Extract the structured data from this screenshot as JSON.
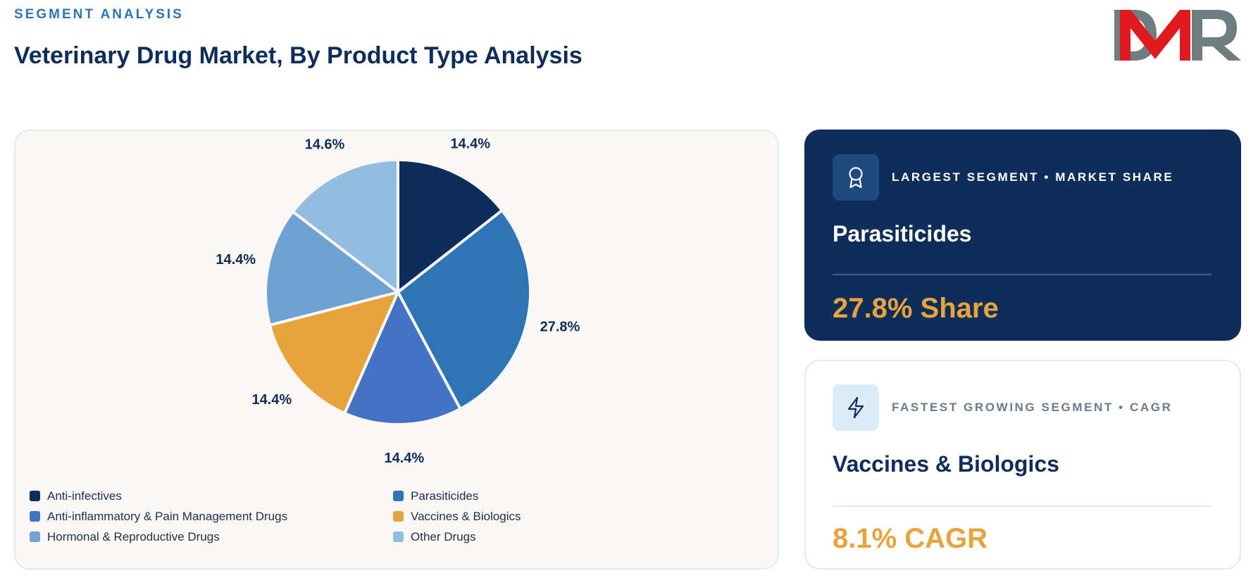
{
  "header": {
    "eyebrow": "SEGMENT ANALYSIS",
    "title": "Veterinary Drug Market, By Product Type Analysis"
  },
  "logo": {
    "text": "DMR",
    "colors": {
      "d": "#6e7d7d",
      "m": "#e0191f",
      "r": "#6e7d7d"
    }
  },
  "chart_data": {
    "type": "pie",
    "categories": [
      "Anti-infectives",
      "Parasiticides",
      "Anti-inflammatory & Pain Management Drugs",
      "Vaccines & Biologics",
      "Hormonal & Reproductive Drugs",
      "Other Drugs"
    ],
    "values": [
      14.4,
      27.8,
      14.4,
      14.4,
      14.4,
      14.6
    ],
    "labels": [
      "14.4%",
      "27.8%",
      "14.4%",
      "14.4%",
      "14.4%",
      "14.6%"
    ],
    "colors": [
      "#0e2d5a",
      "#2e75b6",
      "#4472c4",
      "#e8a43c",
      "#70a1d4",
      "#90bde0"
    ],
    "legend_position": "bottom"
  },
  "cards": {
    "largest": {
      "icon": "award-icon",
      "eyebrow": "LARGEST SEGMENT • MARKET SHARE",
      "segment": "Parasiticides",
      "value": "27.8% Share"
    },
    "fastest": {
      "icon": "lightning-icon",
      "eyebrow": "FASTEST GROWING SEGMENT • CAGR",
      "segment": "Vaccines & Biologics",
      "value": "8.1% CAGR"
    }
  }
}
